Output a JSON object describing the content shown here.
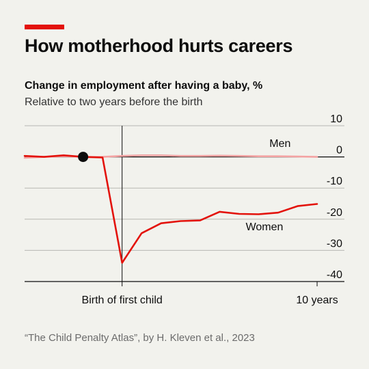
{
  "header": {
    "title": "How motherhood hurts careers",
    "subtitle": "Change in employment after having a baby, %",
    "subsubtitle": "Relative to two years before the birth"
  },
  "source": "“The Child Penalty Atlas”, by H. Kleven et al., 2023",
  "colors": {
    "accent": "#e3120b",
    "women": "#e3120b",
    "men": "#f4a3a3",
    "marker": "#0d0d0d",
    "background": "#f2f2ed"
  },
  "chart_data": {
    "type": "line",
    "x": [
      -5,
      -4,
      -3,
      -2,
      -1,
      0,
      1,
      2,
      3,
      4,
      5,
      6,
      7,
      8,
      9,
      10
    ],
    "xlim": [
      -5,
      11.4
    ],
    "ylim": [
      -40,
      10
    ],
    "yticks": [
      10,
      0,
      -10,
      -20,
      -30,
      -40
    ],
    "ytick_labels": [
      "10",
      "0",
      "-10",
      "-20",
      "-30",
      "-40"
    ],
    "xticks": [
      {
        "value": 0,
        "label": "Birth of first child"
      },
      {
        "value": 10,
        "label": "10 years"
      }
    ],
    "marker": {
      "x": -2,
      "y": 0
    },
    "grid": "horizontal",
    "series": [
      {
        "name": "Men",
        "values": [
          -0.3,
          0,
          0.2,
          0,
          0,
          0.3,
          0.5,
          0.5,
          0.3,
          0.3,
          0.4,
          0.3,
          0.2,
          0.2,
          0.1,
          0
        ]
      },
      {
        "name": "Women",
        "values": [
          0.3,
          0,
          0.5,
          0,
          -0.2,
          -34,
          -24.5,
          -21.3,
          -20.6,
          -20.4,
          -17.6,
          -18.3,
          -18.4,
          -17.9,
          -15.8,
          -15.1
        ]
      }
    ],
    "series_labels": {
      "Men": "Men",
      "Women": "Women"
    }
  }
}
